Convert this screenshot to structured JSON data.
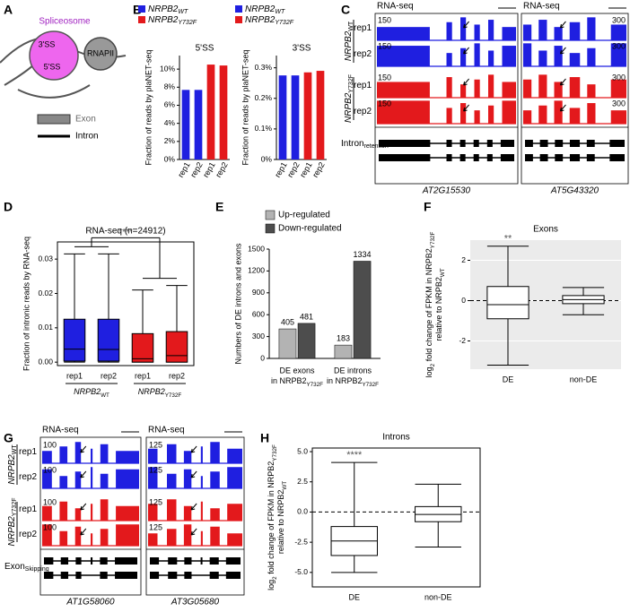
{
  "panel_labels": [
    "A",
    "B",
    "C",
    "D",
    "E",
    "F",
    "G",
    "H"
  ],
  "diagram": {
    "spliceosome": "Spliceosome",
    "ss3": "3'SS",
    "ss5": "5'SS",
    "polymerase": "RNAPII",
    "exon": "Exon",
    "intron": "Intron"
  },
  "chart_data": [
    {
      "type": "bar",
      "title": "5'SS",
      "ylabel": "Fraction of reads by plaNET-seq",
      "categories": [
        "rep1",
        "rep2",
        "rep1",
        "rep2"
      ],
      "series": [
        {
          "name": "NRPB2",
          "name_sub": "WT",
          "color": "#1f1fe0",
          "values": [
            7.7,
            7.7,
            null,
            null
          ]
        },
        {
          "name": "NRPB2",
          "name_sub": "Y732F",
          "color": "#e3191c",
          "values": [
            null,
            null,
            10.5,
            10.4
          ]
        }
      ],
      "ylim": [
        0,
        11.5
      ],
      "yticks": [
        {
          "value": 0,
          "label": "0%"
        },
        {
          "value": 2,
          "label": "2%"
        },
        {
          "value": 4,
          "label": "4%"
        },
        {
          "value": 6,
          "label": "6%"
        },
        {
          "value": 8,
          "label": "8%"
        },
        {
          "value": 10,
          "label": "10%"
        }
      ]
    },
    {
      "type": "bar",
      "title": "3'SS",
      "ylabel": "Fraction of reads by plaNET-seq",
      "categories": [
        "rep1",
        "rep2",
        "rep1",
        "rep2"
      ],
      "series": [
        {
          "name": "NRPB2",
          "name_sub": "WT",
          "color": "#1f1fe0",
          "values": [
            0.275,
            0.275,
            null,
            null
          ]
        },
        {
          "name": "NRPB2",
          "name_sub": "Y732F",
          "color": "#e3191c",
          "values": [
            null,
            null,
            0.285,
            0.29
          ]
        }
      ],
      "ylim": [
        0,
        0.34
      ],
      "yticks": [
        {
          "value": 0,
          "label": "0%"
        },
        {
          "value": 0.1,
          "label": "0.1%"
        },
        {
          "value": 0.2,
          "label": "0.2%"
        },
        {
          "value": 0.3,
          "label": "0.3%"
        }
      ]
    },
    {
      "type": "box",
      "title": "RNA-seq (n=24912)",
      "annotation": "****",
      "ylabel": "Fraction of intronic reads by RNA-seq",
      "categories": [
        "rep1",
        "rep2",
        "rep1",
        "rep2"
      ],
      "groups": [
        [
          "NRPB2",
          "WT"
        ],
        [
          "NRPB2",
          "Y732F"
        ]
      ],
      "colors": [
        "#1f1fe0",
        "#1f1fe0",
        "#e3191c",
        "#e3191c"
      ],
      "boxes": [
        {
          "whisker_low": 0,
          "q1": 0.0003,
          "median": 0.0038,
          "q3": 0.0125,
          "whisker_high": 0.0315
        },
        {
          "whisker_low": 0,
          "q1": 0.0003,
          "median": 0.0037,
          "q3": 0.0125,
          "whisker_high": 0.0315
        },
        {
          "whisker_low": 0,
          "q1": 0,
          "median": 0.001,
          "q3": 0.0083,
          "whisker_high": 0.021
        },
        {
          "whisker_low": 0,
          "q1": 0,
          "median": 0.0019,
          "q3": 0.0089,
          "whisker_high": 0.0223
        }
      ],
      "ylim": [
        -0.001,
        0.035
      ],
      "yticks": [
        {
          "value": 0,
          "label": "0.00"
        },
        {
          "value": 0.01,
          "label": "0.01"
        },
        {
          "value": 0.02,
          "label": "0.02"
        },
        {
          "value": 0.03,
          "label": "0.03"
        }
      ]
    },
    {
      "type": "bar",
      "ylabel": "Numbers of DE introns and exons",
      "categories": [
        "DE exons",
        "DE introns"
      ],
      "category_suffix": [
        "in NRPB2",
        "Y732F"
      ],
      "series": [
        {
          "name": "Up-regulated",
          "color": "#b3b3b3",
          "values": [
            405,
            183
          ]
        },
        {
          "name": "Down-regulated",
          "color": "#4d4d4d",
          "values": [
            481,
            1334
          ]
        }
      ],
      "data_labels": true,
      "ylim": [
        0,
        1500
      ],
      "yticks": [
        0,
        300,
        600,
        900,
        1200,
        1500
      ]
    },
    {
      "type": "box",
      "title": "Exons",
      "annotation": "**",
      "background": "#ebebeb",
      "grid": true,
      "reference_line": 0,
      "ylabel": [
        [
          "log",
          "2",
          " fold change of FPKM in NRPB2",
          "Y732F"
        ],
        [
          "relative to NRPB2",
          "WT"
        ]
      ],
      "categories": [
        "DE",
        "non-DE"
      ],
      "colors": [
        "#ffffff",
        "#ffffff"
      ],
      "boxes": [
        {
          "whisker_low": -3.2,
          "q1": -0.9,
          "median": -0.2,
          "q3": 0.7,
          "whisker_high": 2.7
        },
        {
          "whisker_low": -0.7,
          "q1": -0.15,
          "median": 0.05,
          "q3": 0.25,
          "whisker_high": 0.65
        }
      ],
      "ylim": [
        -3.4,
        3.0
      ],
      "yticks": [
        -2,
        0,
        2
      ]
    },
    {
      "type": "box",
      "title": "Introns",
      "annotation": "****",
      "reference_line": 0,
      "ylabel": [
        [
          "log",
          "2",
          " fold change of FPKM in NRPB2",
          "Y732F"
        ],
        [
          "relative to NRPB2",
          "WT"
        ]
      ],
      "categories": [
        "DE",
        "non-DE"
      ],
      "colors": [
        "#ffffff",
        "#ffffff"
      ],
      "boxes": [
        {
          "whisker_low": -5.0,
          "q1": -3.6,
          "median": -2.4,
          "q3": -1.2,
          "whisker_high": 4.1
        },
        {
          "whisker_low": -2.9,
          "q1": -0.8,
          "median": -0.2,
          "q3": 0.45,
          "whisker_high": 2.3
        }
      ],
      "ylim": [
        -6.2,
        5.3
      ],
      "yticks": [
        {
          "value": -5,
          "label": "-5.0"
        },
        {
          "value": -2.5,
          "label": "-2.5"
        },
        {
          "value": 0,
          "label": "0.0"
        },
        {
          "value": 2.5,
          "label": "2.5"
        },
        {
          "value": 5,
          "label": "5.0"
        }
      ]
    }
  ],
  "track_panels": [
    {
      "headers": [
        "RNA-seq",
        "RNA-seq"
      ],
      "scales": [
        "150",
        "300"
      ],
      "replicates": [
        "rep1",
        "rep2",
        "rep1",
        "rep2"
      ],
      "groups": [
        [
          "NRPB2",
          "WT"
        ],
        [
          "NRPB2",
          "Y732F"
        ]
      ],
      "structure_label": [
        "Intron",
        "retention"
      ],
      "genes": [
        "AT2G15530",
        "AT5G43320"
      ]
    },
    {
      "headers": [
        "RNA-seq",
        "RNA-seq"
      ],
      "scales": [
        "100",
        "125"
      ],
      "replicates": [
        "rep1",
        "rep2",
        "rep1",
        "rep2"
      ],
      "groups": [
        [
          "NRPB2",
          "WT"
        ],
        [
          "NRPB2",
          "Y732F"
        ]
      ],
      "structure_label": [
        "Exon",
        "Skipping"
      ],
      "genes": [
        "AT1G58060",
        "AT3G05680"
      ]
    }
  ]
}
